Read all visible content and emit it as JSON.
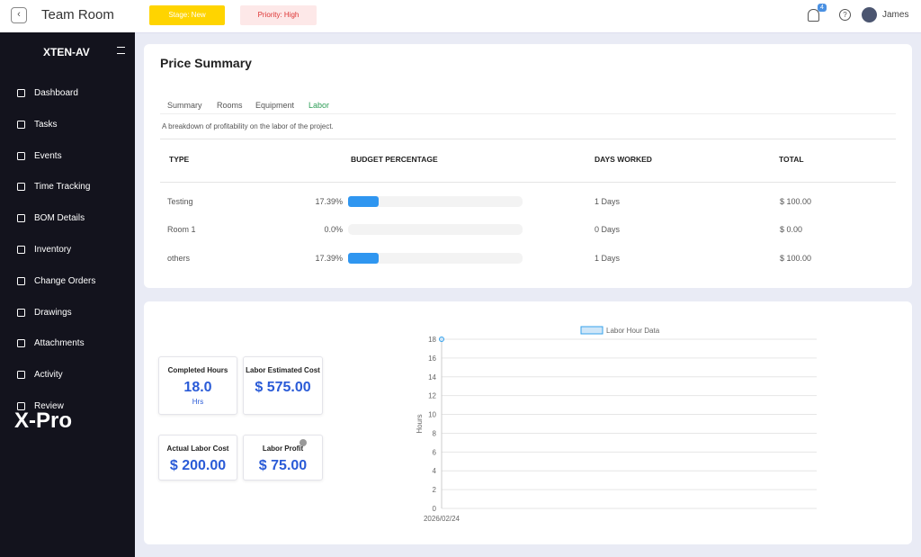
{
  "header": {
    "title": "Team Room",
    "stage": "Stage: New",
    "priority": "Priority: High",
    "notifications": "4",
    "user": "James"
  },
  "sidebar": {
    "brand": "XTEN-AV",
    "items": [
      "Dashboard",
      "Tasks",
      "Events",
      "Time Tracking",
      "BOM Details",
      "Inventory",
      "Change Orders",
      "Drawings",
      "Attachments",
      "Activity",
      "Review"
    ],
    "logo": "X-Pro"
  },
  "price_summary": {
    "title": "Price Summary",
    "tabs": [
      "Summary",
      "Rooms",
      "Equipment",
      "Labor"
    ],
    "active_tab": 3,
    "description": "A breakdown of profitability on the labor of the project.",
    "columns": [
      "TYPE",
      "BUDGET PERCENTAGE",
      "DAYS WORKED",
      "TOTAL"
    ],
    "percentage_range": [
      0,
      100
    ],
    "rows": [
      {
        "type": "Testing",
        "percentage": 17.39,
        "percentage_label": "17.39%",
        "days": "1 Days",
        "total": "$ 100.00"
      },
      {
        "type": "Room 1",
        "percentage": 0,
        "percentage_label": "0.0%",
        "days": "0 Days",
        "total": "$ 0.00"
      },
      {
        "type": "others",
        "percentage": 17.39,
        "percentage_label": "17.39%",
        "days": "1 Days",
        "total": "$ 100.00"
      }
    ]
  },
  "stats": [
    {
      "label": "Completed Hours",
      "value": "18.0",
      "unit": "Hrs"
    },
    {
      "label": "Labor Estimated Cost",
      "value": "$ 575.00"
    },
    {
      "label": "Actual Labor Cost",
      "value": "$ 200.00"
    },
    {
      "label": "Labor Profit",
      "value": "$ 75.00"
    }
  ],
  "chart_data": {
    "type": "line",
    "x": [
      "2026/02/24"
    ],
    "series": [
      {
        "name": "Labor Hour Data",
        "color": "#36a2eb",
        "values": [
          18
        ]
      }
    ],
    "ylabel": "Hours",
    "ylim": [
      0,
      18
    ],
    "yticks": [
      0,
      2,
      4,
      6,
      8,
      10,
      12,
      14,
      16,
      18
    ],
    "grid": true
  }
}
